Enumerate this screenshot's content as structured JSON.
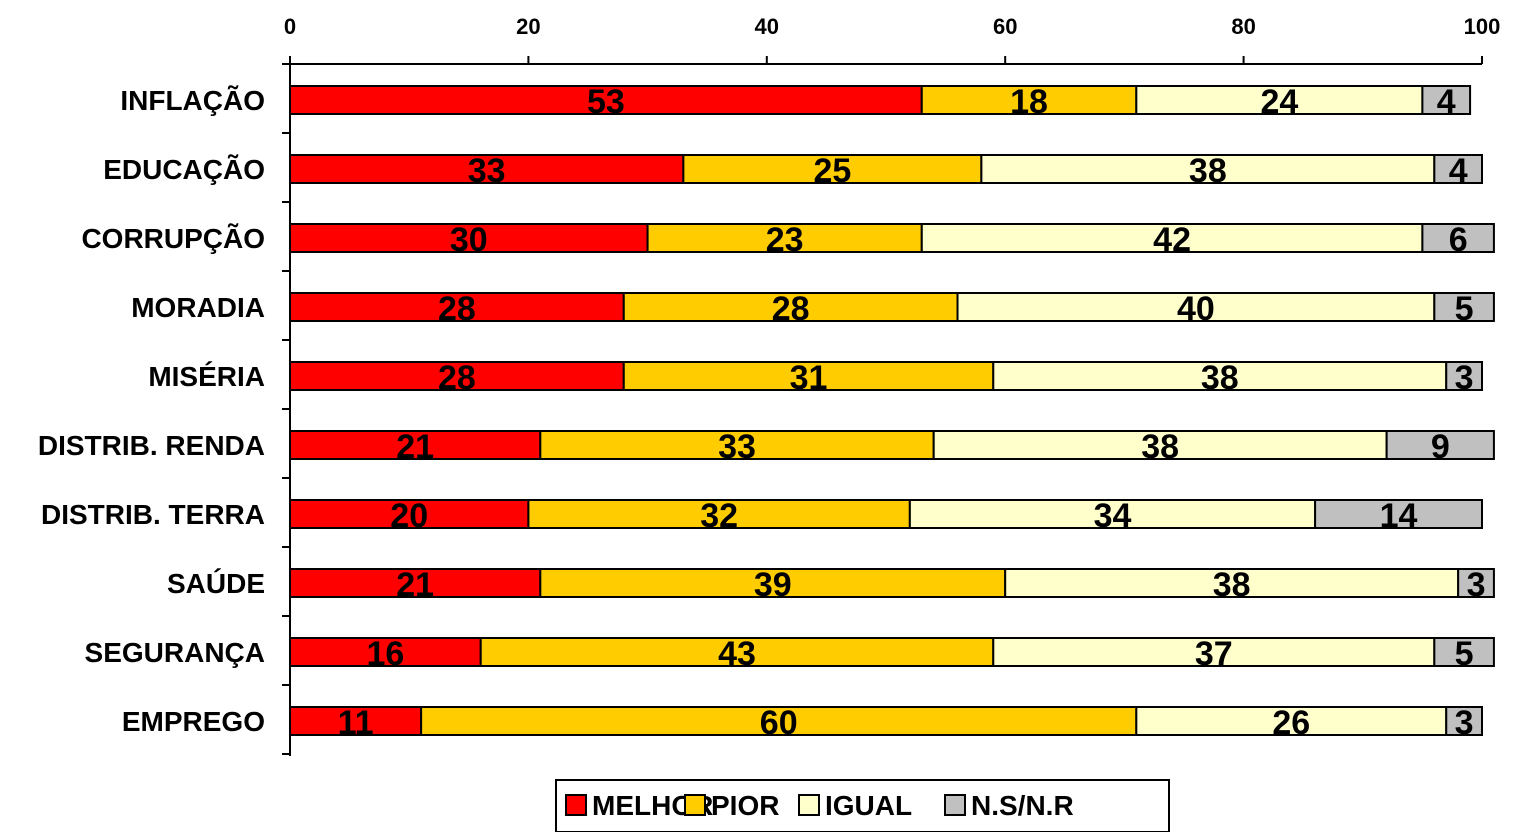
{
  "chart_data": {
    "type": "bar",
    "orientation": "horizontal",
    "stacked": true,
    "xlim": [
      0,
      100
    ],
    "x_ticks": [
      "0",
      "20",
      "40",
      "60",
      "80",
      "100"
    ],
    "x_axis_position": "top",
    "grid": false,
    "legend_position": "bottom",
    "categories": [
      "INFLAÇÃO",
      "EDUCAÇÃO",
      "CORRUPÇÃO",
      "MORADIA",
      "MISÉRIA",
      "DISTRIB. RENDA",
      "DISTRIB. TERRA",
      "SAÚDE",
      "SEGURANÇA",
      "EMPREGO"
    ],
    "series": [
      {
        "name": "MELHOR",
        "color": "#ff0000",
        "values": [
          53,
          33,
          30,
          28,
          28,
          21,
          20,
          21,
          16,
          11
        ]
      },
      {
        "name": "PIOR",
        "color": "#ffcc00",
        "values": [
          18,
          25,
          23,
          28,
          31,
          33,
          32,
          39,
          43,
          60
        ]
      },
      {
        "name": "IGUAL",
        "color": "#ffffcc",
        "values": [
          24,
          38,
          42,
          40,
          38,
          38,
          34,
          38,
          37,
          26
        ]
      },
      {
        "name": "N.S/N.R",
        "color": "#c0c0c0",
        "values": [
          4,
          4,
          6,
          5,
          3,
          9,
          14,
          3,
          5,
          3
        ]
      }
    ]
  }
}
